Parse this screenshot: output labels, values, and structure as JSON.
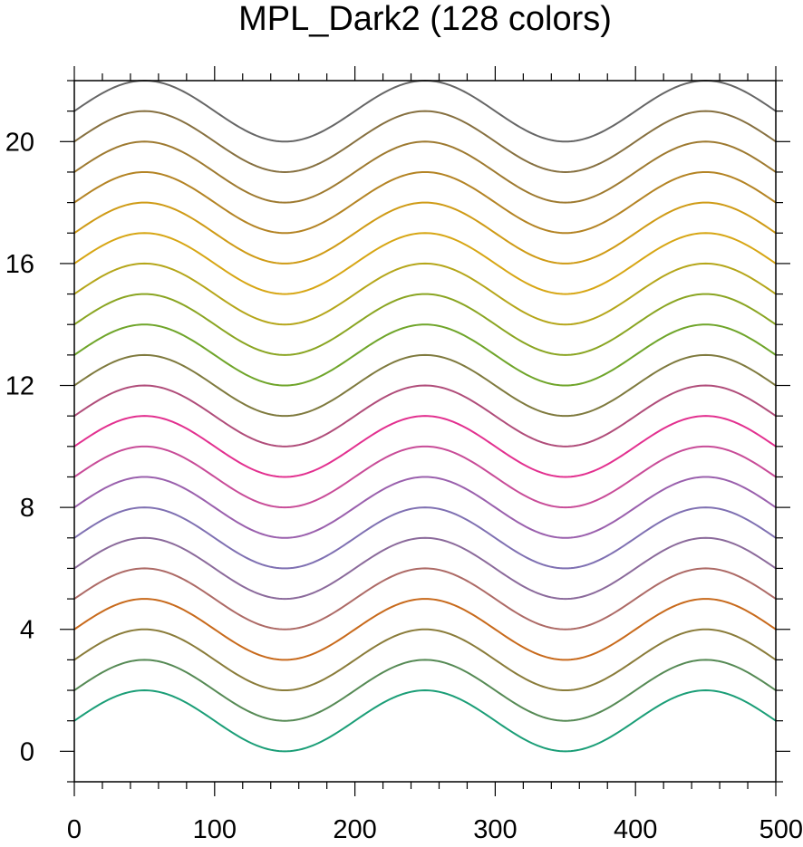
{
  "chart_data": {
    "type": "line",
    "title": "MPL_Dark2 (128 colors)",
    "xlabel": "",
    "ylabel": "",
    "xlim": [
      0,
      500
    ],
    "ylim": [
      -1,
      22
    ],
    "x_ticks": [
      0,
      100,
      200,
      300,
      400,
      500
    ],
    "y_ticks": [
      0,
      4,
      8,
      12,
      16,
      20
    ],
    "x_minor_step": 20,
    "y_minor_step": 1,
    "grid": false,
    "series_formula": "y = offset + 1 + sin(2*pi*x/200)",
    "series": [
      {
        "offset": 0,
        "color": "#1b9e77"
      },
      {
        "offset": 1,
        "color": "#568a55"
      },
      {
        "offset": 2,
        "color": "#8a7c3a"
      },
      {
        "offset": 3,
        "color": "#c86a1c"
      },
      {
        "offset": 4,
        "color": "#ad6a66"
      },
      {
        "offset": 5,
        "color": "#8b6a9b"
      },
      {
        "offset": 6,
        "color": "#7f70b2"
      },
      {
        "offset": 7,
        "color": "#9a60ad"
      },
      {
        "offset": 8,
        "color": "#c84c98"
      },
      {
        "offset": 9,
        "color": "#e2308f"
      },
      {
        "offset": 10,
        "color": "#b04d7a"
      },
      {
        "offset": 11,
        "color": "#7f7a3e"
      },
      {
        "offset": 12,
        "color": "#6fa52a"
      },
      {
        "offset": 13,
        "color": "#8aa522"
      },
      {
        "offset": 14,
        "color": "#b5a61a"
      },
      {
        "offset": 15,
        "color": "#d7a614"
      },
      {
        "offset": 16,
        "color": "#cf9b16"
      },
      {
        "offset": 17,
        "color": "#b48424"
      },
      {
        "offset": 18,
        "color": "#9e7a30"
      },
      {
        "offset": 19,
        "color": "#867040"
      },
      {
        "offset": 20,
        "color": "#666666"
      }
    ]
  }
}
